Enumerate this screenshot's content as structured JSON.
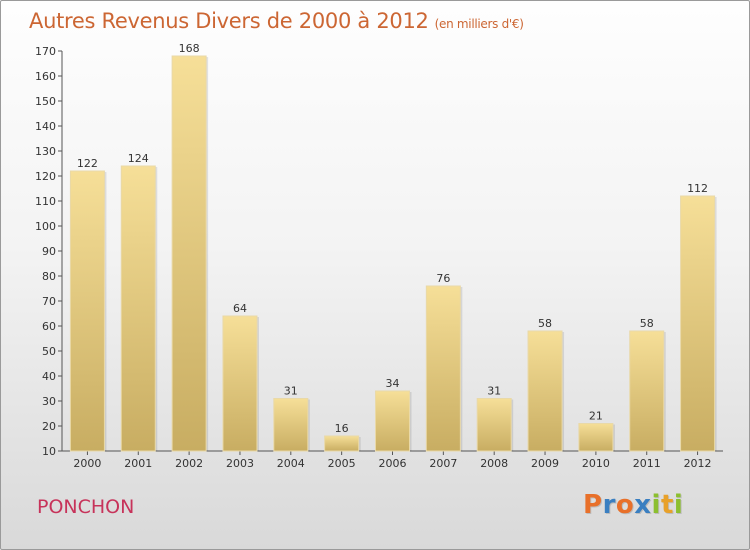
{
  "header": {
    "title": "Autres Revenus Divers de 2000 à 2012",
    "subtitle": "(en milliers d'€)"
  },
  "footer": {
    "commune": "PONCHON",
    "logo": "Proxiti"
  },
  "colors": {
    "title": "#cc6633",
    "commune": "#c7335a",
    "bar_light": "#f6df98",
    "bar_dark": "#c8ad62",
    "logo_letters": [
      "#e8702a",
      "#3a7fc1",
      "#e8702a",
      "#3a7fc1",
      "#8cbf2f",
      "#e8a12a",
      "#8cbf2f"
    ]
  },
  "chart_data": {
    "type": "bar",
    "categories": [
      "2000",
      "2001",
      "2002",
      "2003",
      "2004",
      "2005",
      "2006",
      "2007",
      "2008",
      "2009",
      "2010",
      "2011",
      "2012"
    ],
    "values": [
      122,
      124,
      168,
      64,
      31,
      16,
      34,
      76,
      31,
      58,
      21,
      58,
      112
    ],
    "title": "Autres Revenus Divers de 2000 à 2012",
    "xlabel": "",
    "ylabel": "",
    "ylim": [
      10,
      170
    ],
    "yticks": [
      10,
      20,
      30,
      40,
      50,
      60,
      70,
      80,
      90,
      100,
      110,
      120,
      130,
      140,
      150,
      160,
      170
    ],
    "grid": false,
    "data_labels": true
  }
}
